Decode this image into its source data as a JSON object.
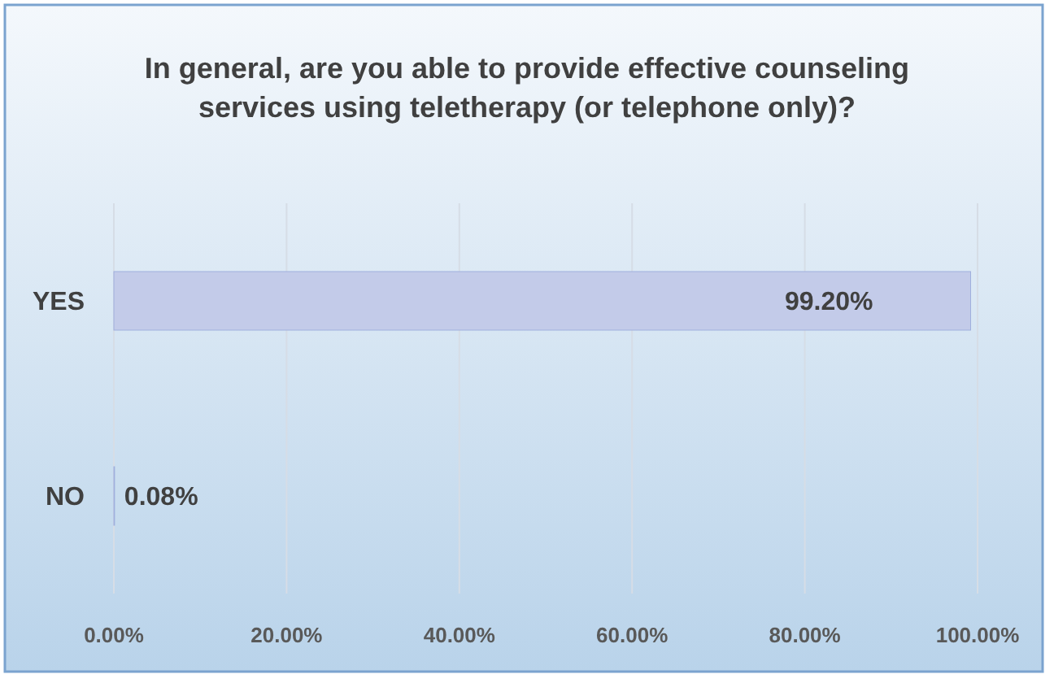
{
  "chart_data": {
    "type": "bar",
    "orientation": "horizontal",
    "title": "In general, are you able to provide effective counseling services using teletherapy (or telephone only)?",
    "categories": [
      "YES",
      "NO"
    ],
    "values": [
      99.2,
      0.08
    ],
    "value_labels": [
      "99.20%",
      "0.08%"
    ],
    "color": "#c3cbe9",
    "xlim": [
      0,
      100
    ],
    "xticks": [
      {
        "value": 0,
        "label": "0.00%"
      },
      {
        "value": 20,
        "label": "20.00%"
      },
      {
        "value": 40,
        "label": "40.00%"
      },
      {
        "value": 60,
        "label": "60.00%"
      },
      {
        "value": 80,
        "label": "80.00%"
      },
      {
        "value": 100,
        "label": "100.00%"
      }
    ],
    "grid": "x"
  }
}
